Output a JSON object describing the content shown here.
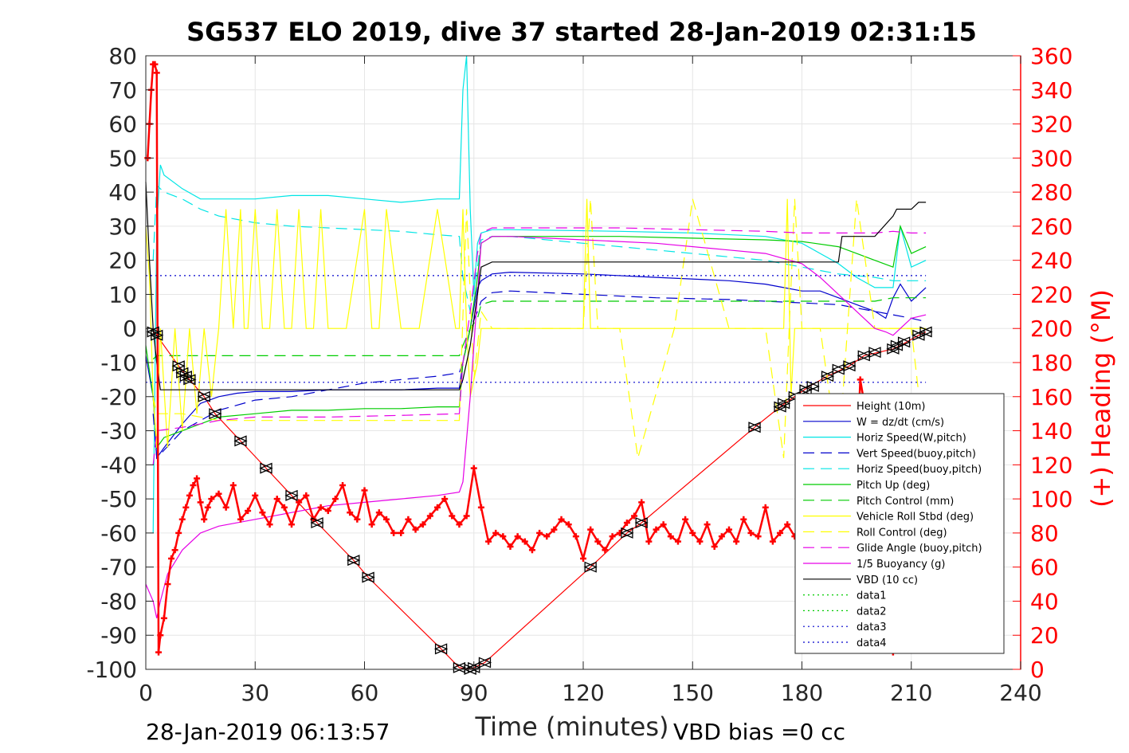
{
  "chart_data": {
    "type": "line",
    "title": "SG537 ELO 2019, dive 37 started 28-Jan-2019 02:31:15",
    "xlabel": "Time (minutes)",
    "ylabel_right": "(+) Heading (°M)",
    "footer_left": "28-Jan-2019 06:13:57",
    "footer_right": "VBD bias =0 cc",
    "xlim": [
      0,
      240
    ],
    "ylim": [
      -100,
      80
    ],
    "ylim_right": [
      0,
      360
    ],
    "x_ticks": [
      "0",
      "30",
      "60",
      "90",
      "120",
      "150",
      "180",
      "210",
      "240"
    ],
    "y_ticks": [
      "80",
      "70",
      "60",
      "50",
      "40",
      "30",
      "20",
      "10",
      "0",
      "-10",
      "-20",
      "-30",
      "-40",
      "-50",
      "-60",
      "-70",
      "-80",
      "-90",
      "-100"
    ],
    "y_ticks_right": [
      "360",
      "340",
      "320",
      "300",
      "280",
      "260",
      "240",
      "220",
      "200",
      "180",
      "160",
      "140",
      "120",
      "100",
      "80",
      "60",
      "40",
      "20",
      "0"
    ],
    "grid": true,
    "legend_position": "bottom-right",
    "series": [
      {
        "name": "Height (10m)",
        "color": "#ff0000",
        "style": "solid",
        "x": [
          2,
          3,
          9,
          12,
          16,
          19,
          26,
          33,
          40,
          47,
          57,
          61,
          81,
          86,
          89,
          90,
          93,
          122,
          132,
          136,
          167,
          174,
          178,
          182,
          187,
          191,
          193,
          197,
          205,
          207,
          212,
          214
        ],
        "y": [
          -1,
          -2,
          -11,
          -15,
          -20,
          -25,
          -33,
          -41,
          -49,
          -57,
          -68,
          -73,
          -94,
          -99.5,
          -100,
          -99.5,
          -98,
          -70,
          -60,
          -57,
          -29,
          -23,
          -20,
          -17,
          -14,
          -12,
          -11,
          -8,
          -6,
          -5,
          -2,
          -1
        ]
      },
      {
        "name": "W = dz/dt (cm/s)",
        "color": "#0000cc",
        "style": "solid",
        "x": [
          0,
          2,
          3,
          5,
          10,
          15,
          20,
          25,
          30,
          40,
          50,
          60,
          70,
          80,
          86,
          87,
          89,
          91,
          92,
          95,
          100,
          120,
          140,
          160,
          170,
          175,
          180,
          185,
          190,
          195,
          200,
          203,
          205,
          207,
          210,
          214
        ],
        "y": [
          -8,
          -20,
          -38,
          -35,
          -28,
          -22,
          -20,
          -19,
          -18.5,
          -18.5,
          -18,
          -18,
          -18,
          -17.5,
          -17.5,
          -10,
          0,
          12,
          14,
          16,
          16.5,
          16,
          15,
          14,
          13,
          12,
          11,
          11,
          9,
          7,
          5,
          3,
          9,
          13,
          8,
          12
        ]
      },
      {
        "name": "Horiz Speed(W,pitch)",
        "color": "#00e5e5",
        "style": "solid",
        "x": [
          2,
          3,
          4,
          5,
          10,
          15,
          20,
          30,
          40,
          50,
          60,
          70,
          80,
          86,
          87,
          88,
          89,
          90,
          91,
          92,
          95,
          100,
          130,
          150,
          170,
          180,
          185,
          190,
          195,
          200,
          205,
          207,
          210,
          214
        ],
        "y": [
          -60,
          30,
          48,
          45,
          41,
          38,
          38,
          38,
          39,
          39,
          38,
          37,
          38,
          38,
          70,
          80,
          35,
          10,
          25,
          28,
          29,
          29,
          28.5,
          28,
          27,
          25,
          22,
          19,
          15,
          12,
          12,
          30,
          18,
          20
        ]
      },
      {
        "name": "Vert Speed(buoy,pitch)",
        "color": "#0000cc",
        "style": "dash",
        "x": [
          2,
          3,
          10,
          20,
          30,
          40,
          50,
          60,
          70,
          80,
          86,
          87,
          89,
          91,
          92,
          95,
          100,
          120,
          140,
          160,
          170,
          180,
          190,
          195,
          200,
          205,
          210,
          214
        ],
        "y": [
          -25,
          -38,
          -30,
          -24,
          -21,
          -20,
          -18,
          -16,
          -15,
          -14,
          -13,
          -10,
          0,
          5,
          8,
          10.5,
          11,
          10,
          9,
          8.5,
          8,
          7.5,
          7,
          6,
          5,
          4,
          3,
          2
        ]
      },
      {
        "name": "Horiz Speed(buoy,pitch)",
        "color": "#00e5e5",
        "style": "dash",
        "x": [
          2,
          3,
          5,
          10,
          15,
          20,
          30,
          40,
          50,
          60,
          70,
          80,
          86,
          87,
          89,
          91,
          92,
          95,
          100,
          120,
          140,
          160,
          170,
          180,
          190,
          200,
          205,
          210,
          214
        ],
        "y": [
          20,
          42,
          40,
          38,
          35,
          33,
          31,
          30,
          29.5,
          29,
          28.5,
          27.5,
          27,
          15,
          5,
          18,
          26,
          27,
          27,
          25,
          23,
          21,
          20,
          18,
          16,
          15,
          14,
          14,
          14
        ]
      },
      {
        "name": "Pitch Up (deg)",
        "color": "#00cc00",
        "style": "solid",
        "x": [
          0,
          2,
          3,
          5,
          10,
          15,
          20,
          30,
          40,
          50,
          60,
          70,
          80,
          86,
          87,
          89,
          91,
          92,
          95,
          100,
          130,
          150,
          170,
          180,
          190,
          195,
          200,
          205,
          207,
          210,
          214
        ],
        "y": [
          -5,
          -20,
          -35,
          -32,
          -30,
          -28,
          -26,
          -25,
          -24,
          -24,
          -23.5,
          -23.5,
          -23,
          -23,
          -10,
          0,
          15,
          25,
          27,
          27,
          27,
          26.5,
          26,
          25.5,
          24,
          22,
          20,
          18,
          30,
          22,
          24
        ]
      },
      {
        "name": "Pitch Control (mm)",
        "color": "#00cc00",
        "style": "dash",
        "x": [
          2,
          3,
          10,
          30,
          60,
          86,
          87,
          89,
          91,
          92,
          95,
          130,
          160,
          180,
          190,
          200,
          205,
          210,
          214
        ],
        "y": [
          -9,
          -8,
          -8,
          -8,
          -8,
          -8,
          -5,
          0,
          3,
          7,
          8,
          8,
          8,
          8,
          8,
          8,
          9,
          9,
          9
        ]
      },
      {
        "name": "Vehicle Roll Stbd (deg)",
        "color": "#ffff00",
        "style": "solid",
        "x": [
          0,
          1,
          2,
          3,
          4,
          6,
          8,
          10,
          12,
          14,
          16,
          18,
          20,
          22,
          24,
          26,
          27,
          28,
          30,
          32,
          34,
          36,
          38,
          40,
          42,
          44,
          46,
          48,
          50,
          55,
          60,
          62,
          64,
          66,
          70,
          75,
          80,
          85,
          86,
          87,
          88,
          89,
          90,
          91,
          92,
          95,
          100,
          110,
          120,
          121,
          122,
          123,
          125,
          130,
          135,
          140,
          150,
          160,
          170,
          175,
          176,
          177,
          178,
          180,
          185,
          190,
          195,
          200,
          205,
          210,
          214
        ],
        "y": [
          30,
          15,
          -20,
          -35,
          0,
          -35,
          0,
          -30,
          0,
          -25,
          0,
          -20,
          0,
          35,
          0,
          35,
          0,
          0,
          35,
          0,
          0,
          35,
          0,
          0,
          35,
          0,
          0,
          35,
          0,
          0,
          35,
          0,
          0,
          35,
          0,
          0,
          35,
          0,
          0,
          35,
          0,
          -20,
          -15,
          -10,
          0,
          0,
          0,
          0,
          0,
          38,
          0,
          0,
          0,
          0,
          0,
          0,
          0,
          0,
          0,
          0,
          38,
          -20,
          0,
          0,
          0,
          0,
          0,
          0,
          0,
          0,
          0
        ]
      },
      {
        "name": "Roll Control (deg)",
        "color": "#ffff00",
        "style": "dash",
        "x": [
          2,
          3,
          10,
          20,
          30,
          50,
          70,
          86,
          88,
          90,
          92,
          95,
          120,
          122,
          124,
          130,
          135,
          145,
          150,
          160,
          170,
          175,
          178,
          180,
          185,
          190,
          195,
          200,
          210,
          214
        ],
        "y": [
          -20,
          -25,
          -25,
          -27,
          -27,
          -27,
          -27,
          -27,
          35,
          -15,
          5,
          0,
          0,
          38,
          0,
          0,
          -38,
          0,
          38,
          0,
          0,
          -38,
          38,
          0,
          0,
          -38,
          38,
          0,
          0,
          -38
        ]
      },
      {
        "name": "Glide Angle (buoy,pitch)",
        "color": "#e600e6",
        "style": "dash",
        "x": [
          2,
          3,
          10,
          20,
          30,
          50,
          70,
          86,
          87,
          89,
          91,
          92,
          95,
          130,
          150,
          170,
          180,
          190,
          200,
          205,
          210,
          214
        ],
        "y": [
          -40,
          -30,
          -29,
          -27,
          -26,
          -26,
          -25.5,
          -25,
          -10,
          5,
          22,
          28,
          29.5,
          29.5,
          29,
          28.5,
          28,
          28,
          28,
          28.5,
          28,
          28
        ]
      },
      {
        "name": "1/5 Buoyancy (g)",
        "color": "#e600e6",
        "style": "solid",
        "x": [
          0,
          2,
          3,
          4,
          6,
          10,
          15,
          20,
          30,
          40,
          50,
          60,
          70,
          80,
          86,
          87,
          89,
          91,
          92,
          95,
          100,
          120,
          140,
          160,
          170,
          180,
          185,
          190,
          195,
          200,
          203,
          205,
          207,
          210,
          214
        ],
        "y": [
          -75,
          -80,
          -85,
          -80,
          -72,
          -65,
          -60,
          -58,
          -56,
          -54,
          -52,
          -51,
          -50,
          -49,
          -48,
          -45,
          -20,
          10,
          25,
          27,
          27,
          26,
          25,
          23,
          22,
          19,
          15,
          10,
          5,
          0,
          -1,
          -2,
          0,
          3,
          4
        ]
      },
      {
        "name": "VBD (10 cc)",
        "color": "#000000",
        "style": "solid",
        "x": [
          0,
          1,
          2,
          3,
          4,
          5,
          30,
          60,
          86,
          87,
          89,
          91,
          92,
          95,
          130,
          160,
          180,
          190,
          191,
          200,
          205,
          206,
          210,
          212,
          214
        ],
        "y": [
          43,
          20,
          0,
          -10,
          -18,
          -18,
          -18,
          -18,
          -18,
          -15,
          -5,
          10,
          18,
          19.5,
          19.5,
          19.5,
          19.5,
          19.5,
          27,
          27,
          33,
          35,
          35,
          37,
          37
        ]
      },
      {
        "name": "data1",
        "color": "#00cc00",
        "style": "dot",
        "x": [],
        "y": []
      },
      {
        "name": "data2",
        "color": "#00cc00",
        "style": "dot",
        "x": [],
        "y": []
      },
      {
        "name": "data3",
        "color": "#0000cc",
        "style": "dot",
        "x": [
          0,
          214
        ],
        "y": [
          15.5,
          15.5
        ]
      },
      {
        "name": "data4",
        "color": "#0000cc",
        "style": "dot",
        "x": [
          0,
          214
        ],
        "y": [
          -15.8,
          -15.8
        ]
      }
    ],
    "heading_series": {
      "axis": "right",
      "color": "#ff0000",
      "marker": "plus",
      "x": [
        0.5,
        1,
        1.5,
        2,
        2.5,
        3,
        3.5,
        4,
        5,
        6,
        7,
        8,
        9,
        10,
        11,
        12,
        13,
        14,
        15,
        16,
        17,
        18,
        20,
        22,
        24,
        26,
        28,
        30,
        32,
        34,
        36,
        38,
        40,
        42,
        44,
        46,
        48,
        50,
        52,
        54,
        56,
        58,
        60,
        62,
        64,
        66,
        68,
        70,
        72,
        74,
        76,
        78,
        80,
        82,
        84,
        86,
        88,
        90,
        92,
        94,
        96,
        98,
        100,
        102,
        104,
        106,
        108,
        110,
        112,
        114,
        116,
        118,
        120,
        122,
        124,
        126,
        128,
        130,
        132,
        134,
        136,
        138,
        140,
        142,
        144,
        146,
        148,
        150,
        152,
        154,
        156,
        158,
        160,
        162,
        164,
        166,
        168,
        170,
        172,
        174,
        176,
        178,
        180,
        182,
        184,
        186,
        188,
        190,
        192,
        194,
        196,
        198,
        200,
        202,
        204,
        205
      ],
      "y": [
        300,
        320,
        340,
        355,
        355,
        350,
        10,
        20,
        30,
        50,
        65,
        70,
        80,
        88,
        95,
        102,
        108,
        112,
        98,
        88,
        95,
        100,
        103,
        95,
        108,
        88,
        93,
        102,
        92,
        85,
        100,
        95,
        85,
        98,
        102,
        88,
        95,
        93,
        100,
        108,
        92,
        88,
        105,
        85,
        92,
        88,
        80,
        80,
        88,
        82,
        85,
        90,
        95,
        100,
        90,
        85,
        90,
        118,
        95,
        75,
        80,
        78,
        72,
        78,
        75,
        70,
        80,
        78,
        82,
        88,
        85,
        78,
        65,
        82,
        75,
        70,
        78,
        80,
        86,
        90,
        98,
        75,
        82,
        85,
        78,
        75,
        88,
        80,
        75,
        85,
        72,
        78,
        82,
        75,
        88,
        80,
        78,
        95,
        75,
        80,
        85,
        78,
        90,
        75,
        95,
        80,
        85,
        90,
        70,
        65,
        170,
        145,
        100,
        95,
        80,
        10
      ]
    },
    "marker_series": {
      "color": "#000000",
      "marker": "triangles",
      "x": [
        2,
        3,
        9,
        10,
        11,
        12,
        16,
        19,
        26,
        33,
        40,
        47,
        57,
        61,
        81,
        86,
        89,
        90,
        93,
        122,
        132,
        136,
        167,
        174,
        175,
        178,
        181,
        183,
        187,
        190,
        193,
        197,
        200,
        205,
        206,
        208,
        212,
        214
      ],
      "y": [
        -1,
        -2,
        -11,
        -13,
        -14,
        -15,
        -20,
        -25,
        -33,
        -41,
        -49,
        -57,
        -68,
        -73,
        -94,
        -99.5,
        -100,
        -99.5,
        -98,
        -70,
        -60,
        -57,
        -29,
        -23,
        -22,
        -20,
        -18,
        -17,
        -14,
        -12,
        -11,
        -8,
        -7,
        -6,
        -5,
        -4,
        -2,
        -1
      ]
    }
  }
}
